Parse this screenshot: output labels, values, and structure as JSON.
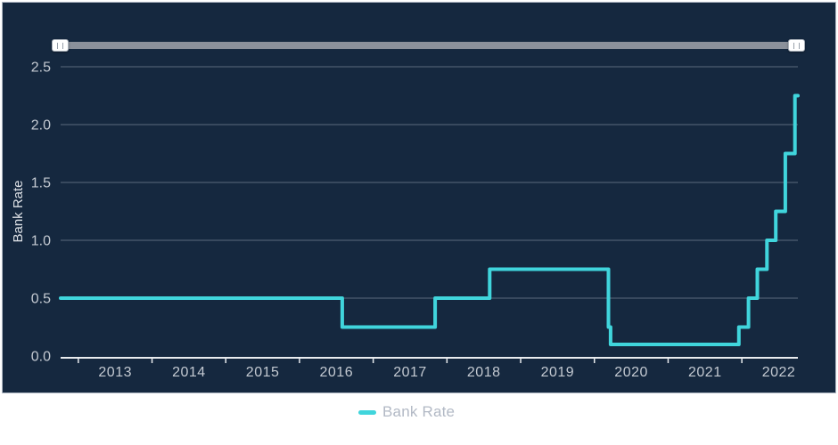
{
  "panel": {
    "background": "#15283f",
    "border_color": "#aeb6c2",
    "grid_color": "#5c6a7c",
    "axis_color": "#e9ecef",
    "tick_label_color": "#c3c9d1",
    "axis_title_color": "#dde1e6"
  },
  "range_slider": {
    "track_color": "#8b919b",
    "handle_color": "#ffffff",
    "grip_glyph": "||"
  },
  "legend": {
    "position": "bottom",
    "items": [
      {
        "label": "Bank Rate",
        "color": "#40d5dc"
      }
    ]
  },
  "chart_data": {
    "type": "line",
    "subtype": "step",
    "title": "",
    "xlabel": "",
    "ylabel": "Bank Rate",
    "xlim": [
      2012.76,
      2022.76
    ],
    "ylim": [
      0,
      2.5
    ],
    "grid": "horizontal",
    "legend_position": "bottom",
    "y_ticks": [
      0,
      0.5,
      1.0,
      1.5,
      2.0,
      2.5
    ],
    "y_tick_labels": [
      "0.0",
      "0.5",
      "1.0",
      "1.5",
      "2.0",
      "2.5"
    ],
    "x_year_boundaries": [
      2013,
      2014,
      2015,
      2016,
      2017,
      2018,
      2019,
      2020,
      2021,
      2022
    ],
    "x_tick_labels": [
      "2013",
      "2014",
      "2015",
      "2016",
      "2017",
      "2018",
      "2019",
      "2020",
      "2021",
      "2022"
    ],
    "series": [
      {
        "name": "Bank Rate",
        "color": "#40d5dc",
        "line_width": 4,
        "x_end": 2022.76,
        "points": [
          {
            "x": 2012.76,
            "y": 0.5
          },
          {
            "x": 2016.58,
            "y": 0.25
          },
          {
            "x": 2017.84,
            "y": 0.5
          },
          {
            "x": 2018.58,
            "y": 0.75
          },
          {
            "x": 2020.19,
            "y": 0.25
          },
          {
            "x": 2020.22,
            "y": 0.1
          },
          {
            "x": 2021.96,
            "y": 0.25
          },
          {
            "x": 2022.09,
            "y": 0.5
          },
          {
            "x": 2022.21,
            "y": 0.75
          },
          {
            "x": 2022.34,
            "y": 1.0
          },
          {
            "x": 2022.46,
            "y": 1.25
          },
          {
            "x": 2022.59,
            "y": 1.75
          },
          {
            "x": 2022.72,
            "y": 2.25
          }
        ]
      }
    ]
  }
}
